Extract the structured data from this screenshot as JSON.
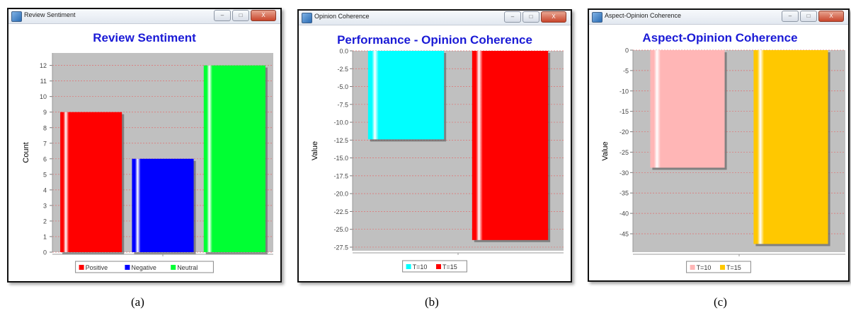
{
  "captions": [
    "(a)",
    "(b)",
    "(c)"
  ],
  "windows": [
    {
      "title": "Review Sentiment",
      "ctrl_min": "–",
      "ctrl_max": "□",
      "ctrl_close": "X"
    },
    {
      "title": "Opinion Coherence",
      "ctrl_min": "–",
      "ctrl_max": "□",
      "ctrl_close": "X"
    },
    {
      "title": "Aspect-Opinion Coherence",
      "ctrl_min": "–",
      "ctrl_max": "□",
      "ctrl_close": "X"
    }
  ],
  "colors": {
    "title_blue": "#1a1ad6",
    "plot_bg": "#c0c0c0",
    "grid": "#e07070",
    "positive": "#ff0000",
    "negative": "#0000ff",
    "neutral": "#00ff33",
    "cyan": "#00ffff",
    "red": "#ff0000",
    "pink": "#ffb6b6",
    "gold": "#ffc800"
  },
  "chart_data": [
    {
      "type": "bar",
      "title": "Review Sentiment",
      "ylabel": "Count",
      "xlabel": "",
      "ylim": [
        0,
        12.8
      ],
      "yticks": [
        "0",
        "1",
        "2",
        "3",
        "4",
        "5",
        "6",
        "7",
        "8",
        "9",
        "10",
        "11",
        "12"
      ],
      "series": [
        {
          "name": "Positive",
          "values": [
            9
          ],
          "color": "#ff0000"
        },
        {
          "name": "Negative",
          "values": [
            6
          ],
          "color": "#0000ff"
        },
        {
          "name": "Neutral",
          "values": [
            12
          ],
          "color": "#00ff33"
        }
      ],
      "grid": true,
      "legend": "bottom"
    },
    {
      "type": "bar",
      "title": "Performance - Opinion Coherence",
      "ylabel": "Value",
      "xlabel": "",
      "ylim": [
        -28.0,
        0.0
      ],
      "yticks": [
        "0.0",
        "-2.5",
        "-5.0",
        "-7.5",
        "-10.0",
        "-12.5",
        "-15.0",
        "-17.5",
        "-20.0",
        "-22.5",
        "-25.0",
        "-27.5"
      ],
      "series": [
        {
          "name": "T=10",
          "values": [
            -12.4
          ],
          "color": "#00ffff"
        },
        {
          "name": "T=15",
          "values": [
            -26.5
          ],
          "color": "#ff0000"
        }
      ],
      "grid": true,
      "legend": "bottom"
    },
    {
      "type": "bar",
      "title": "Aspect-Opinion Coherence",
      "ylabel": "Value",
      "xlabel": "",
      "ylim": [
        -49.5,
        0
      ],
      "yticks": [
        "0",
        "-5",
        "-10",
        "-15",
        "-20",
        "-25",
        "-30",
        "-35",
        "-40",
        "-45"
      ],
      "series": [
        {
          "name": "T=10",
          "values": [
            -28.8
          ],
          "color": "#ffb6b6"
        },
        {
          "name": "T=15",
          "values": [
            -47.5
          ],
          "color": "#ffc800"
        }
      ],
      "grid": true,
      "legend": "bottom"
    }
  ]
}
